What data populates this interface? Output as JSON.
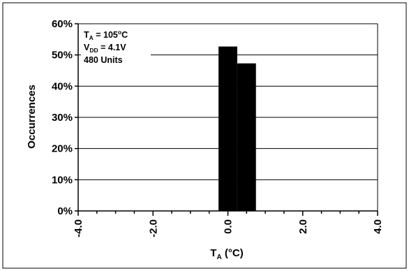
{
  "chart_data": {
    "type": "bar",
    "title": "",
    "xlabel": {
      "main": "T",
      "sub": "A",
      "rest": " (°C)"
    },
    "ylabel": "Occurrences",
    "xlim": [
      -4.0,
      4.0
    ],
    "ylim": [
      0,
      60
    ],
    "x_major_ticks": [
      -4.0,
      -2.0,
      0.0,
      2.0,
      4.0
    ],
    "x_tick_labels": [
      "-4.0",
      "-2.0",
      "0.0",
      "2.0",
      "4.0"
    ],
    "x_minor_tick_step": 0.5,
    "y_ticks": [
      0,
      10,
      20,
      30,
      40,
      50,
      60
    ],
    "y_tick_labels": [
      "0%",
      "10%",
      "20%",
      "30%",
      "40%",
      "50%",
      "60%"
    ],
    "grid": "horizontal",
    "bar_width": 0.5,
    "bars": [
      {
        "x": 0.0,
        "value": 52.7
      },
      {
        "x": 0.5,
        "value": 47.3
      }
    ],
    "annotations": [
      {
        "main": "T",
        "sub": "A",
        "rest": " = 105",
        "sup": "o",
        "tail": "C"
      },
      {
        "main": "V",
        "sub": "DD",
        "rest": " = 4.1V",
        "sup": "",
        "tail": ""
      },
      {
        "main": "480 Units",
        "sub": "",
        "rest": "",
        "sup": "",
        "tail": ""
      }
    ],
    "colors": {
      "bar": "#000000",
      "grid": "#000000",
      "axis": "#000000",
      "frame": "#000000",
      "background": "#ffffff"
    }
  }
}
